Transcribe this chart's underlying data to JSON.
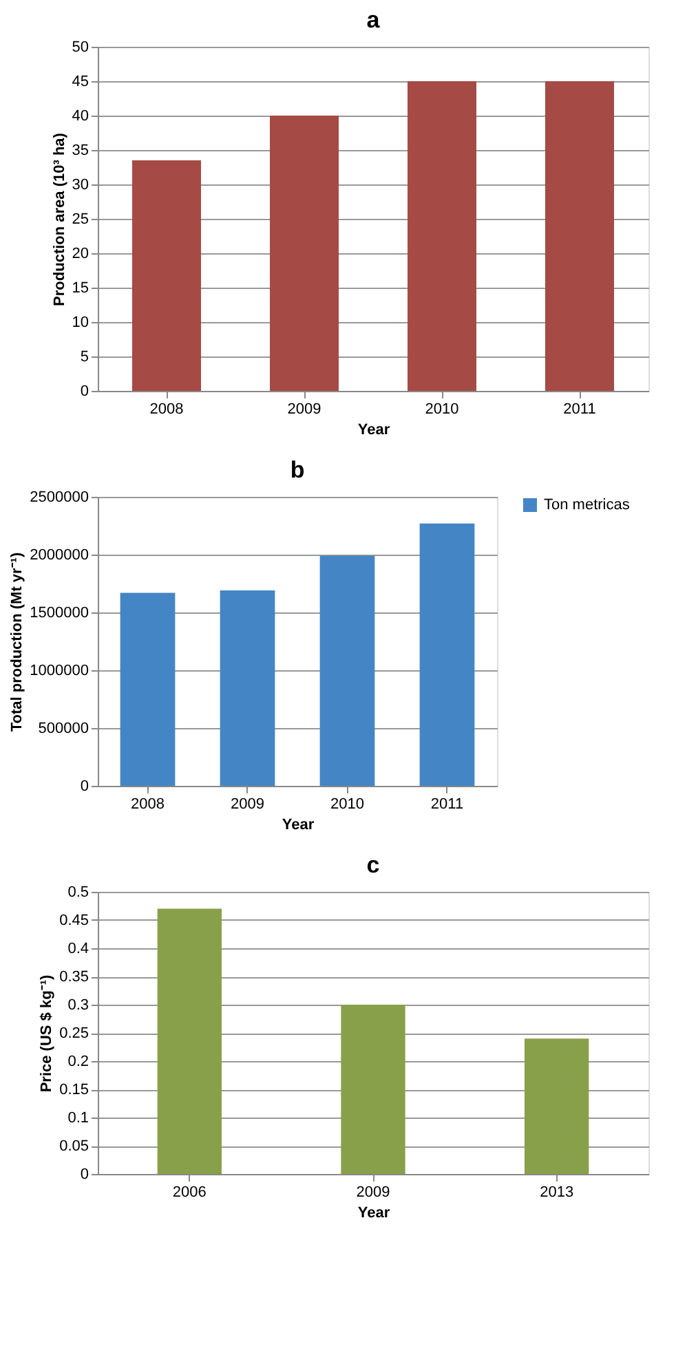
{
  "chart_data": [
    {
      "type": "bar",
      "title": "a",
      "categories": [
        "2008",
        "2009",
        "2010",
        "2011"
      ],
      "xlabel": "Year",
      "ylabel": "Production area (10³ ha)",
      "series": [
        {
          "color": "#a54a44",
          "values": [
            33.5,
            40,
            45,
            45
          ]
        }
      ],
      "ylim": [
        0,
        50
      ],
      "yticks": [
        0,
        5,
        10,
        15,
        20,
        25,
        30,
        35,
        40,
        45,
        50
      ],
      "grid": "y"
    },
    {
      "type": "bar",
      "title": "b",
      "categories": [
        "2008",
        "2009",
        "2010",
        "2011"
      ],
      "xlabel": "Year",
      "ylabel": "Total production (Mt yr⁻¹)",
      "series": [
        {
          "name": "Ton metricas",
          "color": "#4485c6",
          "values": [
            1670000,
            1690000,
            1990000,
            2270000
          ]
        }
      ],
      "ylim": [
        0,
        2500000
      ],
      "yticks": [
        0,
        500000,
        1000000,
        1500000,
        2000000,
        2500000
      ],
      "grid": "y",
      "legend": "right"
    },
    {
      "type": "bar",
      "title": "c",
      "categories": [
        "2006",
        "2009",
        "2013"
      ],
      "xlabel": "Year",
      "ylabel": "Price (US $ kg⁻¹)",
      "series": [
        {
          "color": "#88a04a",
          "values": [
            0.47,
            0.3,
            0.24
          ]
        }
      ],
      "ylim": [
        0,
        0.5
      ],
      "yticks": [
        0,
        0.05,
        0.1,
        0.15,
        0.2,
        0.25,
        0.3,
        0.35,
        0.4,
        0.45,
        0.5
      ],
      "grid": "y"
    }
  ]
}
